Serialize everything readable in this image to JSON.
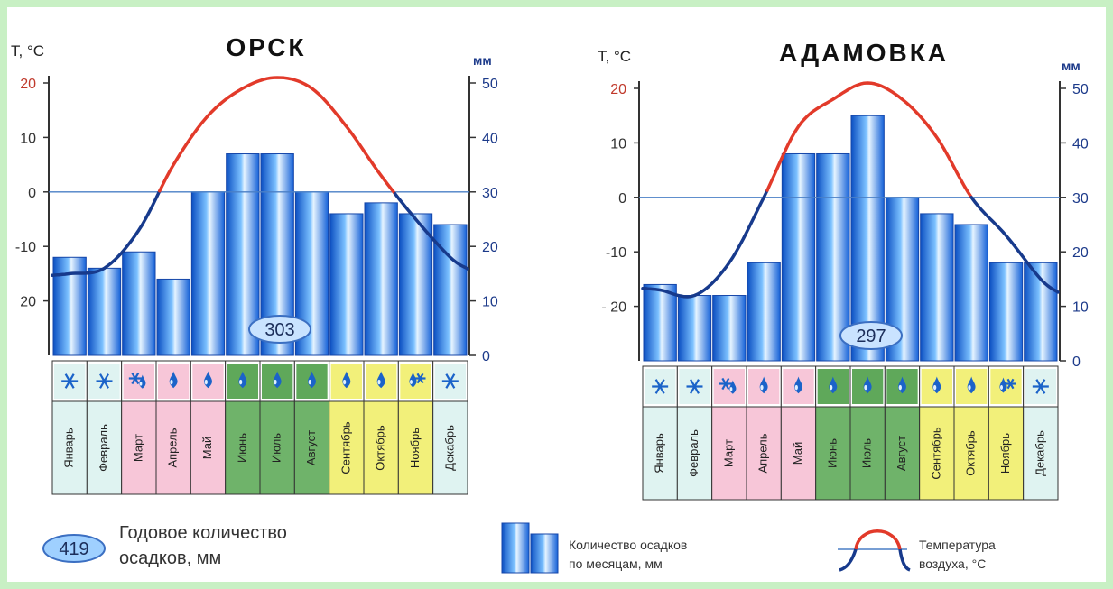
{
  "legend": {
    "annual_value": "419",
    "annual_text_line1": "Годовое количество",
    "annual_text_line2": "осадков, мм",
    "precip_text_line1": "Количество осадков",
    "precip_text_line2": "по месяцам, мм",
    "temp_text_line1": "Температура",
    "temp_text_line2": "воздуха, °С"
  },
  "colors": {
    "bar": "#1e6fe0",
    "bar_light": "#d8ecff",
    "temp_warm": "#e23a2a",
    "temp_cold": "#173a8c",
    "axis_left": "#c0392b",
    "axis_right": "#1c3a8a",
    "season_winter": "#dff3f1",
    "season_spring": "#f7c6d8",
    "season_summer": "#6fb36a",
    "season_autumn": "#f2f07a"
  },
  "chart_data": [
    {
      "type": "bar",
      "title": "ОРСК",
      "left_axis_label": "T, °C",
      "right_axis_label": "мм",
      "ylabel_left_ticks": [
        "20",
        "10",
        "0",
        "-10",
        "20"
      ],
      "ylabel_right_ticks": [
        "50",
        "40",
        "30",
        "20",
        "10",
        "0"
      ],
      "temp_ylim": [
        -30,
        20
      ],
      "precip_ylim": [
        0,
        50
      ],
      "annual_total": "303",
      "categories": [
        "Январь",
        "Февраль",
        "Март",
        "Апрель",
        "Май",
        "Июнь",
        "Июль",
        "Август",
        "Сентябрь",
        "Октябрь",
        "Ноябрь",
        "Декабрь"
      ],
      "series": [
        {
          "values": [
            18,
            16,
            19,
            14,
            30,
            37,
            37,
            30,
            26,
            28,
            26,
            24
          ]
        },
        {
          "values": [
            -15,
            -14,
            -7,
            5,
            14,
            19,
            21,
            19,
            12,
            3,
            -5,
            -12
          ]
        }
      ],
      "weather_icons": [
        "snow",
        "snow",
        "snow-rain",
        "rain",
        "rain",
        "rain",
        "rain",
        "rain",
        "rain",
        "rain",
        "rain-snow",
        "snow"
      ],
      "seasons": [
        "winter",
        "winter",
        "spring",
        "spring",
        "spring",
        "summer",
        "summer",
        "summer",
        "autumn",
        "autumn",
        "autumn",
        "winter"
      ]
    },
    {
      "type": "bar",
      "title": "АДАМОВКА",
      "left_axis_label": "T, °C",
      "right_axis_label": "мм",
      "ylabel_left_ticks": [
        "20",
        "10",
        "0",
        "-10",
        "- 20"
      ],
      "ylabel_right_ticks": [
        "50",
        "40",
        "30",
        "20",
        "10",
        "0"
      ],
      "temp_ylim": [
        -30,
        20
      ],
      "precip_ylim": [
        0,
        50
      ],
      "annual_total": "297",
      "categories": [
        "Январь",
        "Февраль",
        "Март",
        "Апрель",
        "Май",
        "Июнь",
        "Июль",
        "Август",
        "Сентябрь",
        "Октябрь",
        "Ноябрь",
        "Декабрь"
      ],
      "series": [
        {
          "values": [
            14,
            12,
            12,
            18,
            38,
            38,
            45,
            30,
            27,
            25,
            18,
            18
          ]
        },
        {
          "values": [
            -17,
            -18,
            -12,
            0,
            13,
            18,
            21,
            18,
            11,
            0,
            -7,
            -15
          ]
        }
      ],
      "weather_icons": [
        "snow",
        "snow",
        "snow-rain",
        "rain",
        "rain",
        "rain",
        "rain",
        "rain",
        "rain",
        "rain",
        "rain-snow",
        "snow"
      ],
      "seasons": [
        "winter",
        "winter",
        "spring",
        "spring",
        "spring",
        "summer",
        "summer",
        "summer",
        "autumn",
        "autumn",
        "autumn",
        "winter"
      ]
    }
  ]
}
